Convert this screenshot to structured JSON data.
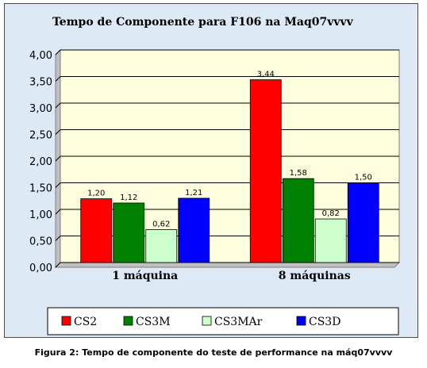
{
  "chart_data": {
    "type": "bar",
    "title": "Tempo de Componente para F106 na Maq07vvvv",
    "categories": [
      "1 máquina",
      "8 máquinas"
    ],
    "series": [
      {
        "name": "CS2",
        "values": [
          1.2,
          3.44
        ],
        "labels": [
          "1,20",
          "3,44"
        ],
        "color": "#ff0000"
      },
      {
        "name": "CS3M",
        "values": [
          1.12,
          1.58
        ],
        "labels": [
          "1,12",
          "1,58"
        ],
        "color": "#008000"
      },
      {
        "name": "CS3MAr",
        "values": [
          0.62,
          0.82
        ],
        "labels": [
          "0,62",
          "0,82"
        ],
        "color": "#ccffcc"
      },
      {
        "name": "CS3D",
        "values": [
          1.21,
          1.5
        ],
        "labels": [
          "1,21",
          "1,50"
        ],
        "color": "#0000ff"
      }
    ],
    "ylim": [
      0,
      4
    ],
    "yticks": [
      "0,00",
      "0,50",
      "1,00",
      "1,50",
      "2,00",
      "2,50",
      "3,00",
      "3,50",
      "4,00"
    ],
    "plot_background": "#ffffe0",
    "grid": true,
    "legend_position": "bottom"
  },
  "caption": "Figura 2: Tempo de componente do teste de performance na máq07vvvv"
}
